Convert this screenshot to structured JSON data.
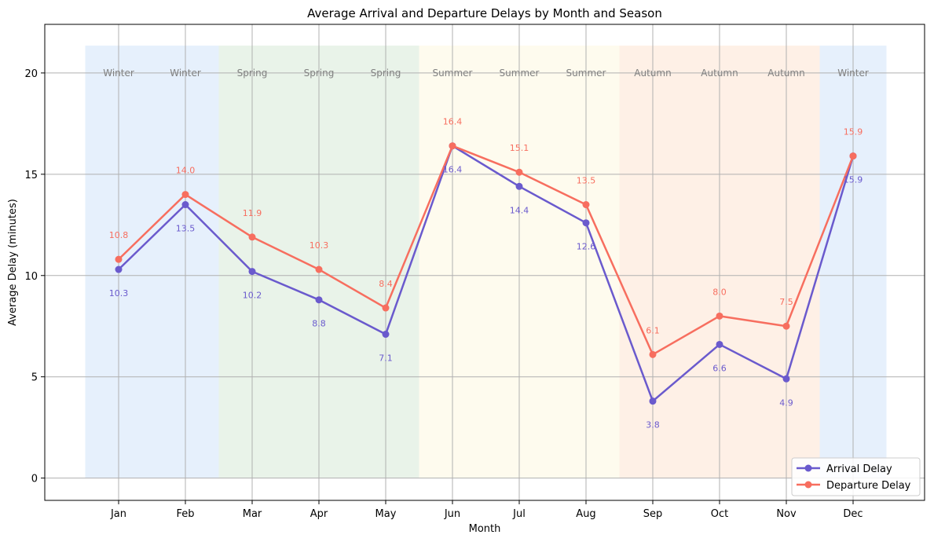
{
  "chart_data": {
    "type": "line",
    "title": "Average Arrival and Departure Delays by Month and Season",
    "xlabel": "Month",
    "ylabel": "Average Delay (minutes)",
    "categories": [
      "Jan",
      "Feb",
      "Mar",
      "Apr",
      "May",
      "Jun",
      "Jul",
      "Aug",
      "Sep",
      "Oct",
      "Nov",
      "Dec"
    ],
    "seasons": [
      "Winter",
      "Winter",
      "Spring",
      "Spring",
      "Spring",
      "Summer",
      "Summer",
      "Summer",
      "Autumn",
      "Autumn",
      "Autumn",
      "Winter"
    ],
    "season_colors": {
      "Winter": "#e6f0fc",
      "Spring": "#e9f3e9",
      "Summer": "#fefbee",
      "Autumn": "#fef0e6"
    },
    "yticks": [
      0,
      5,
      10,
      15,
      20
    ],
    "ylim": [
      -1.1,
      22.4
    ],
    "grid": true,
    "legend_position": "lower-right",
    "series": [
      {
        "name": "Arrival Delay",
        "color": "#6a5acd",
        "values": [
          10.3,
          13.5,
          10.2,
          8.8,
          7.1,
          16.4,
          14.4,
          12.6,
          3.8,
          6.6,
          4.9,
          15.9
        ],
        "labels": [
          "10.3",
          "13.5",
          "10.2",
          "8.8",
          "7.1",
          "16.4",
          "14.4",
          "12.6",
          "3.8",
          "6.6",
          "4.9",
          "15.9"
        ]
      },
      {
        "name": "Departure Delay",
        "color": "#f76e5f",
        "values": [
          10.8,
          14.0,
          11.9,
          10.3,
          8.4,
          16.4,
          15.1,
          13.5,
          6.1,
          8.0,
          7.5,
          15.9
        ],
        "labels": [
          "10.8",
          "14.0",
          "11.9",
          "10.3",
          "8.4",
          "16.4",
          "15.1",
          "13.5",
          "6.1",
          "8.0",
          "7.5",
          "15.9"
        ]
      }
    ]
  }
}
